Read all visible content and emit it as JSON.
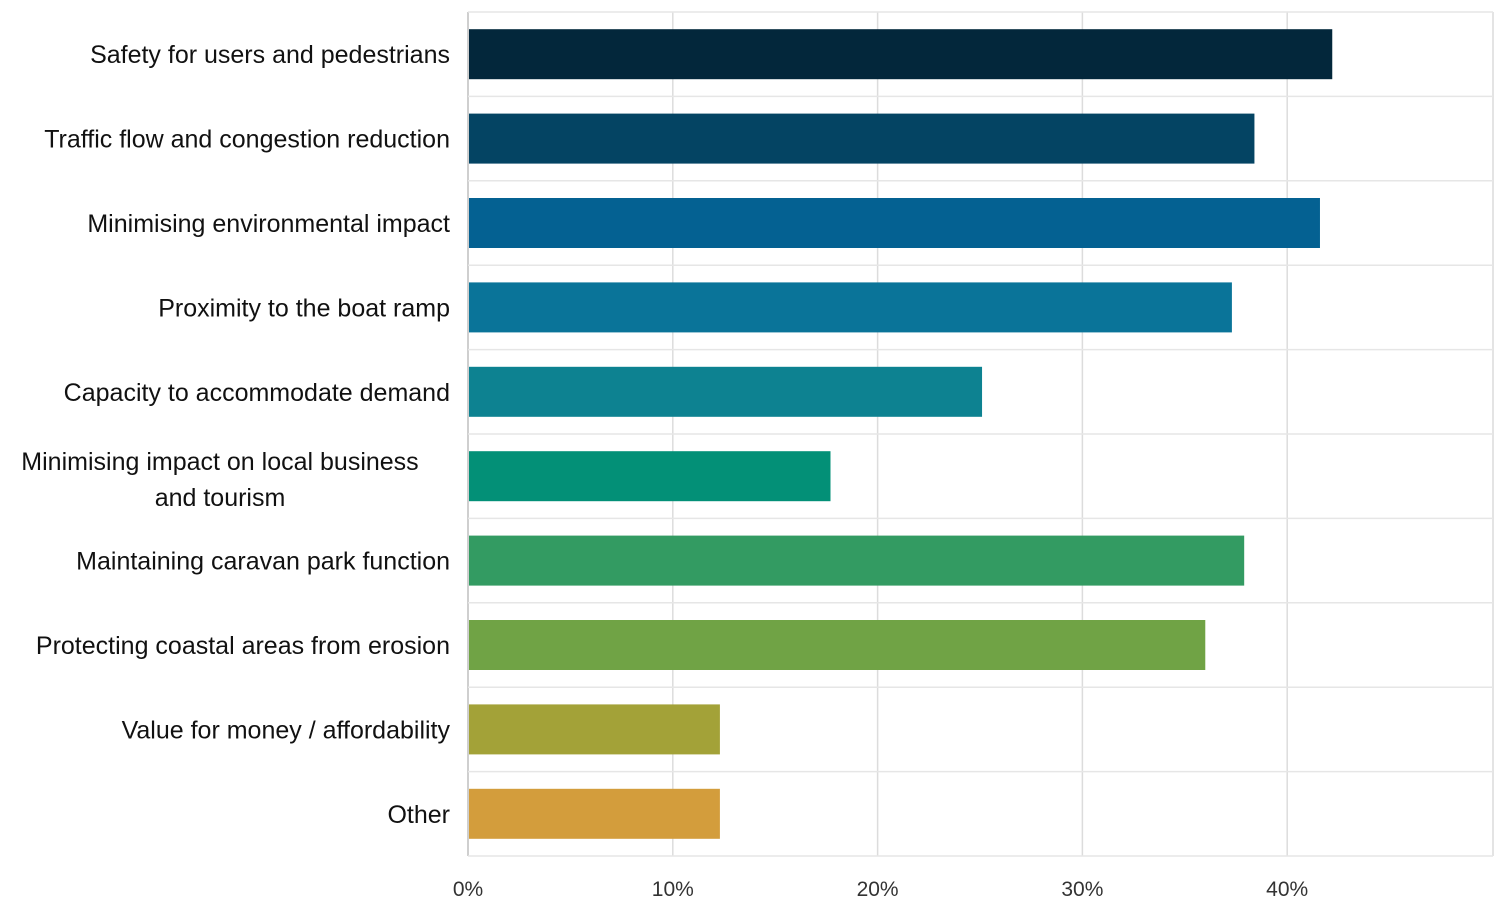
{
  "chart_data": {
    "type": "bar",
    "orientation": "horizontal",
    "categories": [
      "Safety for users and pedestrians",
      "Traffic flow and congestion reduction",
      "Minimising environmental impact",
      "Proximity to the boat ramp",
      "Capacity to accommodate demand",
      "Minimising impact on local business and tourism",
      "Maintaining caravan park function",
      "Protecting coastal areas from erosion",
      "Value for money / affordability",
      "Other"
    ],
    "values": [
      42.2,
      38.4,
      41.6,
      37.3,
      25.1,
      17.7,
      37.9,
      36.0,
      12.3,
      12.3
    ],
    "colors": [
      "#03273b",
      "#044463",
      "#046192",
      "#0a7499",
      "#0d8291",
      "#039077",
      "#339b62",
      "#70a345",
      "#a3a238",
      "#d39d3c"
    ],
    "x_ticks": [
      "0%",
      "10%",
      "20%",
      "30%",
      "40%"
    ],
    "xlim": [
      0,
      50
    ],
    "grid": true,
    "legend": "none",
    "title": "",
    "xlabel": "",
    "ylabel": ""
  }
}
